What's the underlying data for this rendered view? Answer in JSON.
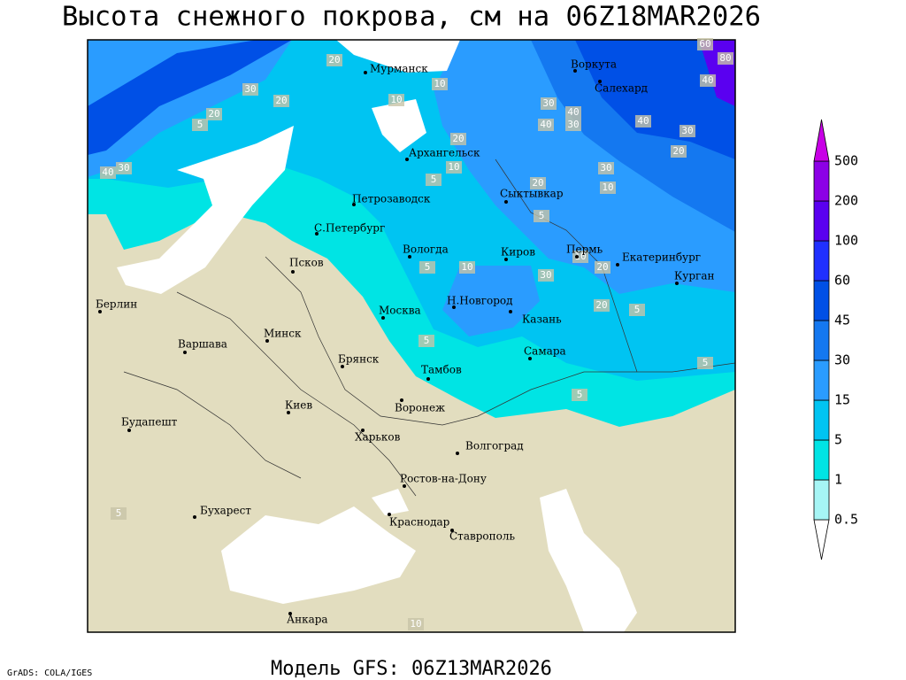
{
  "header": {
    "title": "Высота снежного покрова, см на 06Z18MAR2026"
  },
  "map": {
    "cities": [
      "Мурманск",
      "Архангельск",
      "Воркута",
      "Салехард",
      "Петрозаводск",
      "С.Петербург",
      "Сыктывкар",
      "Вологда",
      "Псков",
      "Киров",
      "Пермь",
      "Екатеринбург",
      "Курган",
      "Берлин",
      "Н.Новгород",
      "Москва",
      "Казань",
      "Минск",
      "Варшава",
      "Самара",
      "Брянск",
      "Тамбов",
      "Киев",
      "Воронеж",
      "Будапешт",
      "Харьков",
      "Волгоград",
      "Ростов-на-Дону",
      "Бухарест",
      "Краснодар",
      "Ставрополь",
      "Анкара"
    ],
    "contour_labels": [
      "20",
      "30",
      "20",
      "5",
      "20",
      "10",
      "10",
      "20",
      "30",
      "40",
      "30",
      "40",
      "40",
      "30",
      "20",
      "40",
      "30",
      "10",
      "5",
      "10",
      "20",
      "5",
      "10",
      "30",
      "20",
      "10",
      "20",
      "5",
      "5",
      "5",
      "5",
      "5",
      "40",
      "30",
      "5",
      "10",
      "60",
      "80"
    ]
  },
  "legend": {
    "labels": [
      0.5,
      1,
      5,
      15,
      30,
      45,
      60,
      100,
      200,
      500
    ],
    "colors": [
      "#ffffff",
      "#a6f5f5",
      "#00e4e4",
      "#00c4f2",
      "#2a9cff",
      "#1478f0",
      "#0050e6",
      "#2030ff",
      "#5a00f0",
      "#8c00e6",
      "#c800e6"
    ]
  },
  "footer": {
    "credit": "GrADS: COLA/IGES",
    "model": "Модель GFS: 06Z13MAR2026"
  }
}
